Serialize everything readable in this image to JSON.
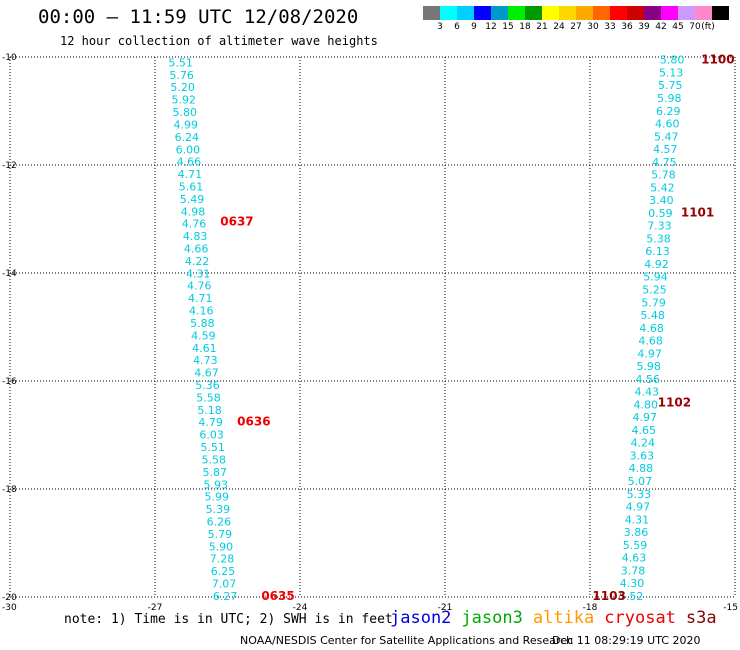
{
  "header": {
    "title": "00:00 – 11:59 UTC 12/08/2020",
    "subtitle": "12 hour collection of altimeter wave heights"
  },
  "colorbar": {
    "colors": [
      "#777777",
      "#00ffff",
      "#00cfff",
      "#0000ff",
      "#0099cc",
      "#00ee00",
      "#009900",
      "#ffff00",
      "#ffd700",
      "#ffaa00",
      "#ff6600",
      "#ff0000",
      "#cc0000",
      "#880088",
      "#ff00ff",
      "#cc99ff",
      "#ff88cc",
      "#000000"
    ],
    "labels": [
      "3",
      "6",
      "9",
      "12",
      "15",
      "18",
      "21",
      "24",
      "27",
      "30",
      "33",
      "36",
      "39",
      "42",
      "45",
      "70",
      "(ft)"
    ]
  },
  "axes": {
    "lat_labels": [
      "-10",
      "-12",
      "-14",
      "-16",
      "-18",
      "-20"
    ],
    "lon_labels": [
      "-30",
      "-27",
      "-24",
      "-21",
      "-18",
      "-15"
    ],
    "lat_values": [
      -10,
      -12,
      -14,
      -16,
      -18,
      -20
    ],
    "lon_values": [
      -30,
      -27,
      -24,
      -21,
      -18,
      -15
    ],
    "lat_range": [
      -20,
      -10
    ],
    "lon_range": [
      -30,
      -15
    ],
    "grid": true
  },
  "tracks": [
    {
      "color": "#00ccdd",
      "start": {
        "lon": -26.47,
        "lat": -10.1
      },
      "end": {
        "lon": -25.55,
        "lat": -19.98
      },
      "values": [
        "5.51",
        "5.76",
        "5.20",
        "5.92",
        "5.80",
        "4.99",
        "6.24",
        "6.00",
        "4.66",
        "4.71",
        "5.61",
        "5.49",
        "4.98",
        "4.76",
        "4.83",
        "4.66",
        "4.22",
        "4.31",
        "4.76",
        "4.71",
        "4.16",
        "5.88",
        "4.59",
        "4.61",
        "4.73",
        "4.67",
        "5.36",
        "5.58",
        "5.18",
        "4.79",
        "6.03",
        "5.51",
        "5.58",
        "5.87",
        "5.93",
        "5.99",
        "5.39",
        "6.26",
        "5.79",
        "5.90",
        "7.28",
        "6.25",
        "7.07",
        "6.27"
      ]
    },
    {
      "color": "#00ccdd",
      "start": {
        "lon": -16.3,
        "lat": -10.05
      },
      "end": {
        "lon": -17.15,
        "lat": -19.98
      },
      "values": [
        "5.80",
        "5.13",
        "5.75",
        "5.98",
        "6.29",
        "4.60",
        "5.47",
        "4.57",
        "4.75",
        "5.78",
        "5.42",
        "3.40",
        "0.59",
        "7.33",
        "5.38",
        "6.13",
        "4.92",
        "5.94",
        "5.25",
        "5.79",
        "5.48",
        "4.68",
        "4.68",
        "4.97",
        "5.98",
        "4.56",
        "4.43",
        "4.80",
        "4.97",
        "4.65",
        "4.24",
        "3.63",
        "4.88",
        "5.07",
        "5.33",
        "4.97",
        "4.31",
        "3.86",
        "5.59",
        "4.63",
        "3.78",
        "4.30",
        "5.52"
      ]
    }
  ],
  "time_labels": [
    {
      "text": "0637",
      "color": "#ee0000",
      "lon": -25.65,
      "lat": -13.05
    },
    {
      "text": "0636",
      "color": "#ee0000",
      "lon": -25.3,
      "lat": -16.75
    },
    {
      "text": "0635",
      "color": "#ee0000",
      "lon": -24.8,
      "lat": -19.98
    },
    {
      "text": "1100",
      "color": "#990000",
      "lon": -15.7,
      "lat": -10.05
    },
    {
      "text": "1101",
      "color": "#990000",
      "lon": -16.12,
      "lat": -12.88
    },
    {
      "text": "1102",
      "color": "#990000",
      "lon": -16.6,
      "lat": -16.4
    },
    {
      "text": "1103",
      "color": "#990000",
      "lon": -17.95,
      "lat": -19.98
    }
  ],
  "note": "note: 1) Time is in UTC; 2) SWH is in feet",
  "satellites": [
    {
      "name": "jason2",
      "color": "#0000dd"
    },
    {
      "name": "jason3",
      "color": "#00aa00"
    },
    {
      "name": "altika",
      "color": "#ff9900"
    },
    {
      "name": "cryosat",
      "color": "#ee0000"
    },
    {
      "name": "s3a",
      "color": "#880000"
    }
  ],
  "credit": "NOAA/NESDIS Center for Satellite Applications and Research",
  "timestamp": "Dec 11 08:29:19 UTC 2020"
}
